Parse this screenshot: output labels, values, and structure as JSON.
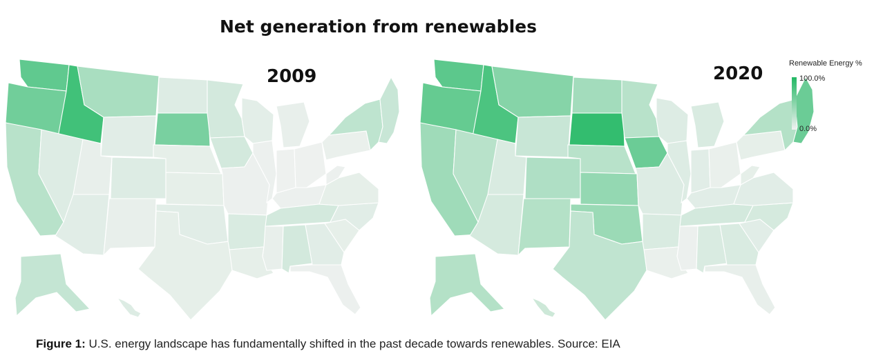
{
  "title": "Net generation from renewables",
  "legend": {
    "title": "Renewable Energy %",
    "max_label": "100.0%",
    "min_label": "0.0%",
    "scale": {
      "low_color": "#f2f2f2",
      "high_color": "#22b864"
    }
  },
  "caption": {
    "label": "Figure 1:",
    "text": " U.S. energy landscape has fundamentally shifted in the past decade towards renewables. Source: EIA"
  },
  "maps": [
    {
      "year": "2009",
      "values": {
        "WA": 0.7,
        "OR": 0.62,
        "ID": 0.85,
        "CA": 0.28,
        "NV": 0.1,
        "MT": 0.35,
        "WY": 0.08,
        "UT": 0.05,
        "AZ": 0.08,
        "CO": 0.1,
        "NM": 0.05,
        "ND": 0.1,
        "SD": 0.58,
        "NE": 0.06,
        "KS": 0.06,
        "OK": 0.08,
        "TX": 0.06,
        "MN": 0.15,
        "IA": 0.15,
        "MO": 0.03,
        "AR": 0.12,
        "LA": 0.06,
        "WI": 0.07,
        "IL": 0.03,
        "MI": 0.05,
        "IN": 0.02,
        "OH": 0.02,
        "KY": 0.03,
        "TN": 0.15,
        "MS": 0.05,
        "AL": 0.15,
        "GA": 0.08,
        "FL": 0.03,
        "SC": 0.06,
        "NC": 0.08,
        "VA": 0.06,
        "WV": 0.03,
        "PA": 0.04,
        "NY": 0.25,
        "NE_REG": 0.2,
        "AK": 0.22,
        "HI": 0.1
      }
    },
    {
      "year": "2020",
      "values": {
        "WA": 0.72,
        "OR": 0.68,
        "ID": 0.8,
        "CA": 0.4,
        "NV": 0.28,
        "MT": 0.52,
        "WY": 0.2,
        "UT": 0.12,
        "AZ": 0.14,
        "CO": 0.32,
        "NM": 0.3,
        "ND": 0.38,
        "SD": 0.92,
        "NE": 0.28,
        "KS": 0.45,
        "OK": 0.42,
        "TX": 0.24,
        "MN": 0.28,
        "IA": 0.65,
        "MO": 0.1,
        "AR": 0.12,
        "LA": 0.04,
        "WI": 0.1,
        "IL": 0.1,
        "MI": 0.12,
        "IN": 0.08,
        "OH": 0.04,
        "KY": 0.08,
        "TN": 0.15,
        "MS": 0.03,
        "AL": 0.12,
        "GA": 0.12,
        "FL": 0.05,
        "SC": 0.08,
        "NC": 0.14,
        "VA": 0.08,
        "WV": 0.06,
        "PA": 0.06,
        "NY": 0.3,
        "NE_REG": 0.65,
        "AK": 0.3,
        "HI": 0.18
      }
    }
  ]
}
